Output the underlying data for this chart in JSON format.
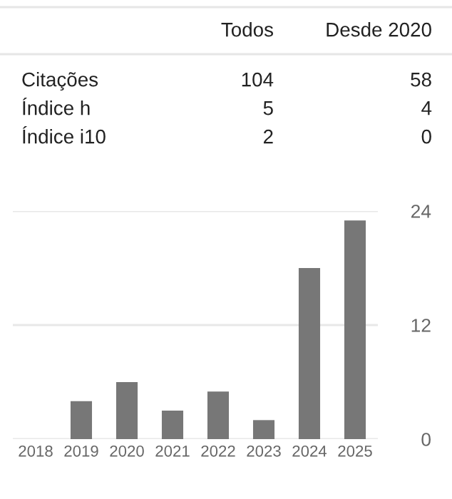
{
  "chart_data": [
    {
      "type": "other",
      "annotations": [
        "Todos",
        "Desde 2020",
        "Citações",
        "104",
        "58",
        "Índice h",
        "5",
        "4",
        "Índice i10",
        "2",
        "0"
      ]
    },
    {
      "type": "bar",
      "categories": [
        "2018",
        "2019",
        "2020",
        "2021",
        "2022",
        "2023",
        "2024",
        "2025"
      ],
      "values": [
        0,
        4,
        6,
        3,
        5,
        2,
        18,
        23
      ],
      "color": "#777777",
      "ylim": [
        0,
        24
      ],
      "yticks": [
        0,
        12,
        24
      ],
      "grid": "y"
    }
  ]
}
